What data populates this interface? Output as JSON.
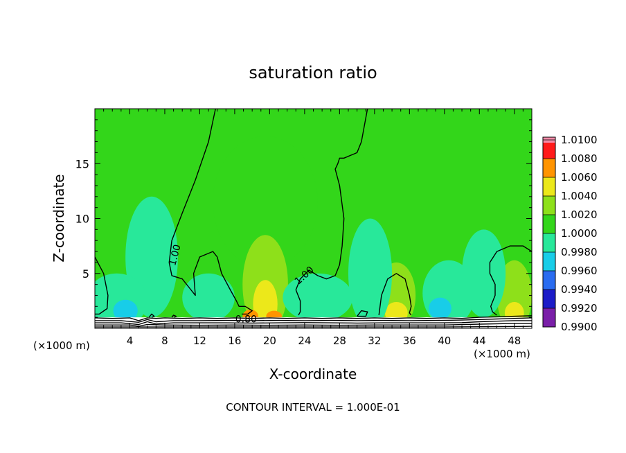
{
  "chart_data": {
    "type": "heatmap",
    "title": "saturation ratio",
    "xlabel": "X-coordinate",
    "ylabel": "Z-coordinate",
    "x_unit_left": "(×1000 m)",
    "x_unit_right": "(×1000 m)",
    "footer": "CONTOUR INTERVAL = 1.000E-01",
    "xlim": [
      0,
      50
    ],
    "ylim": [
      0,
      20
    ],
    "x_ticks": [
      {
        "value": 4,
        "label": "4"
      },
      {
        "value": 8,
        "label": "8"
      },
      {
        "value": 12,
        "label": "12"
      },
      {
        "value": 16,
        "label": "16"
      },
      {
        "value": 20,
        "label": "20"
      },
      {
        "value": 24,
        "label": "24"
      },
      {
        "value": 28,
        "label": "28"
      },
      {
        "value": 32,
        "label": "32"
      },
      {
        "value": 36,
        "label": "36"
      },
      {
        "value": 40,
        "label": "40"
      },
      {
        "value": 44,
        "label": "44"
      },
      {
        "value": 48,
        "label": "48"
      }
    ],
    "y_ticks": [
      {
        "value": 5,
        "label": "5"
      },
      {
        "value": 10,
        "label": "10"
      },
      {
        "value": 15,
        "label": "15"
      }
    ],
    "colorbar": {
      "levels": [
        "0.9900",
        "0.9920",
        "0.9940",
        "0.9960",
        "0.9980",
        "1.0000",
        "1.0020",
        "1.0040",
        "1.0060",
        "1.0080",
        "1.0100"
      ],
      "colors": [
        "#7a1fa8",
        "#1c1cc8",
        "#2a6cf0",
        "#18cde8",
        "#28e89a",
        "#33d61a",
        "#8ee01a",
        "#ece81a",
        "#ff9400",
        "#ff1a1a",
        "#f48aa8"
      ]
    },
    "background_value": 1.0005,
    "regions": [
      {
        "x": 19.5,
        "z": 11.5,
        "rx": 6.0,
        "rz": 6.0,
        "value": 1.0012
      },
      {
        "x": 19.5,
        "z": 4.0,
        "rx": 2.6,
        "rz": 4.5,
        "value": 1.0025
      },
      {
        "x": 19.5,
        "z": 2.2,
        "rx": 1.4,
        "rz": 2.2,
        "value": 1.0045
      },
      {
        "x": 17.8,
        "z": 1.1,
        "rx": 0.9,
        "rz": 0.6,
        "value": 1.0068
      },
      {
        "x": 20.5,
        "z": 1.1,
        "rx": 0.9,
        "rz": 0.5,
        "value": 1.0068
      },
      {
        "x": 34.5,
        "z": 3.0,
        "rx": 2.2,
        "rz": 3.0,
        "value": 1.0025
      },
      {
        "x": 34.5,
        "z": 1.4,
        "rx": 1.3,
        "rz": 1.0,
        "value": 1.0048
      },
      {
        "x": 48.0,
        "z": 3.0,
        "rx": 2.0,
        "rz": 3.2,
        "value": 1.0025
      },
      {
        "x": 48.0,
        "z": 1.4,
        "rx": 1.1,
        "rz": 1.0,
        "value": 1.0048
      },
      {
        "x": 6.5,
        "z": 6.5,
        "rx": 3.0,
        "rz": 5.5,
        "value": 0.9986
      },
      {
        "x": 2.5,
        "z": 2.5,
        "rx": 3.5,
        "rz": 2.5,
        "value": 0.9984
      },
      {
        "x": 13.0,
        "z": 2.8,
        "rx": 3.0,
        "rz": 2.2,
        "value": 0.9986
      },
      {
        "x": 25.5,
        "z": 2.8,
        "rx": 4.0,
        "rz": 2.2,
        "value": 0.9986
      },
      {
        "x": 31.5,
        "z": 5.0,
        "rx": 2.5,
        "rz": 5.0,
        "value": 0.9986
      },
      {
        "x": 40.5,
        "z": 3.2,
        "rx": 3.0,
        "rz": 3.0,
        "value": 0.9984
      },
      {
        "x": 44.5,
        "z": 5.0,
        "rx": 2.5,
        "rz": 4.0,
        "value": 0.9986
      },
      {
        "x": 3.5,
        "z": 1.6,
        "rx": 1.4,
        "rz": 1.0,
        "value": 0.9972
      },
      {
        "x": 39.5,
        "z": 1.8,
        "rx": 1.3,
        "rz": 1.0,
        "value": 0.9972
      }
    ],
    "contours": [
      {
        "level": "1.00",
        "x": [
          0,
          1.0,
          1.5,
          1.4,
          0.5,
          0
        ],
        "z": [
          6.5,
          5.0,
          3.0,
          1.8,
          1.3,
          1.3
        ]
      },
      {
        "level": "1.00",
        "x": [
          13.8,
          13.0,
          11.5,
          10.0,
          8.8,
          8.5,
          8.8,
          10.0,
          11.0,
          11.5,
          11.3,
          12.0,
          13.5,
          14.0,
          14.5,
          15.5,
          16.2,
          16.5,
          17.2,
          18.0,
          17.5,
          16.8
        ],
        "z": [
          20,
          17.0,
          13.5,
          10.5,
          8.0,
          6.0,
          4.8,
          4.5,
          3.5,
          3.0,
          5.0,
          6.5,
          7.0,
          6.5,
          5.0,
          3.5,
          2.5,
          2.0,
          2.0,
          1.6,
          1.3,
          1.3
        ]
      },
      {
        "level": "1.00",
        "x": [
          31.2,
          30.5,
          30.0,
          28.5,
          28.0,
          27.8,
          27.5,
          28.0,
          28.5,
          28.3,
          28.0,
          27.5,
          26.5,
          25.5,
          24.5,
          23.5,
          23.0,
          23.5,
          23.5,
          23.3
        ],
        "z": [
          20,
          17.0,
          16.0,
          15.5,
          15.5,
          15.0,
          14.5,
          13.0,
          10.0,
          7.5,
          5.8,
          4.8,
          4.5,
          4.8,
          5.3,
          4.5,
          3.5,
          2.5,
          1.5,
          1.2
        ]
      },
      {
        "level": "1.00",
        "x": [
          32.5,
          32.8,
          33.5,
          34.5,
          35.5,
          36.0,
          36.2,
          36.0,
          36.2
        ],
        "z": [
          1.2,
          3.0,
          4.5,
          5.0,
          4.5,
          3.0,
          2.0,
          1.4,
          1.2
        ]
      },
      {
        "level": "1.00",
        "x": [
          50,
          49.0,
          47.5,
          46.0,
          45.2,
          45.2,
          45.8,
          45.8,
          45.3,
          45.5,
          46.0
        ],
        "z": [
          7.0,
          7.5,
          7.5,
          7.0,
          6.0,
          5.0,
          4.0,
          3.0,
          2.0,
          1.5,
          1.2
        ]
      },
      {
        "level": "",
        "x": [
          30.0,
          30.5,
          31.2,
          31.0,
          30.0
        ],
        "z": [
          1.1,
          1.6,
          1.5,
          1.1,
          1.1
        ]
      },
      {
        "level": "",
        "x": [
          6.2,
          6.5,
          6.8,
          6.5
        ],
        "z": [
          1.0,
          1.3,
          1.1,
          1.0
        ]
      },
      {
        "level": "",
        "x": [
          8.8,
          9.0,
          9.3,
          9.1
        ],
        "z": [
          1.0,
          1.2,
          1.1,
          1.0
        ]
      }
    ],
    "contour_labels": [
      {
        "text": "1.00",
        "x": 9.5,
        "z": 6.6,
        "rotate": -75
      },
      {
        "text": "1.00",
        "x": 24.2,
        "z": 4.6,
        "rotate": -42
      },
      {
        "text": "0.80",
        "x": 17.3,
        "z": 0.55,
        "rotate": 0
      }
    ],
    "surface_layer": {
      "top_z": 1.0,
      "lines": [
        {
          "x": [
            0,
            2,
            4,
            5,
            6,
            7,
            8,
            10,
            12,
            14,
            16,
            18,
            20,
            22,
            24,
            26,
            28,
            30,
            32,
            34,
            36,
            38,
            40,
            42,
            44,
            46,
            48,
            50
          ],
          "z": [
            0.95,
            0.9,
            0.95,
            0.7,
            0.95,
            0.9,
            0.95,
            0.9,
            0.95,
            0.9,
            0.95,
            0.9,
            0.95,
            0.9,
            0.95,
            0.9,
            0.95,
            0.9,
            0.95,
            0.9,
            0.95,
            0.9,
            0.95,
            0.9,
            1.0,
            1.05,
            1.1,
            1.15
          ]
        },
        {
          "x": [
            0,
            3,
            5,
            6,
            7,
            9,
            12,
            15,
            18,
            21,
            24,
            27,
            30,
            33,
            36,
            39,
            42,
            44,
            46,
            48,
            50
          ],
          "z": [
            0.7,
            0.7,
            0.55,
            0.8,
            0.6,
            0.7,
            0.7,
            0.72,
            0.7,
            0.72,
            0.7,
            0.72,
            0.7,
            0.72,
            0.7,
            0.72,
            0.75,
            0.8,
            0.85,
            0.9,
            0.95
          ]
        },
        {
          "x": [
            0,
            3,
            5,
            6,
            7,
            9,
            12,
            15,
            18,
            21,
            24,
            27,
            30,
            33,
            36,
            39,
            42,
            44,
            46,
            48,
            50
          ],
          "z": [
            0.5,
            0.5,
            0.35,
            0.6,
            0.4,
            0.5,
            0.5,
            0.5,
            0.48,
            0.5,
            0.52,
            0.5,
            0.48,
            0.5,
            0.5,
            0.5,
            0.52,
            0.6,
            0.65,
            0.7,
            0.7
          ]
        },
        {
          "x": [
            0,
            4,
            5,
            6,
            8,
            12,
            16,
            20,
            24,
            28,
            32,
            36,
            40,
            44,
            48,
            50
          ],
          "z": [
            0.3,
            0.3,
            0.18,
            0.35,
            0.3,
            0.28,
            0.3,
            0.28,
            0.3,
            0.28,
            0.3,
            0.3,
            0.3,
            0.38,
            0.45,
            0.45
          ]
        },
        {
          "x": [
            0,
            10,
            20,
            30,
            40,
            50
          ],
          "z": [
            0.12,
            0.12,
            0.12,
            0.12,
            0.12,
            0.18
          ]
        }
      ]
    }
  }
}
